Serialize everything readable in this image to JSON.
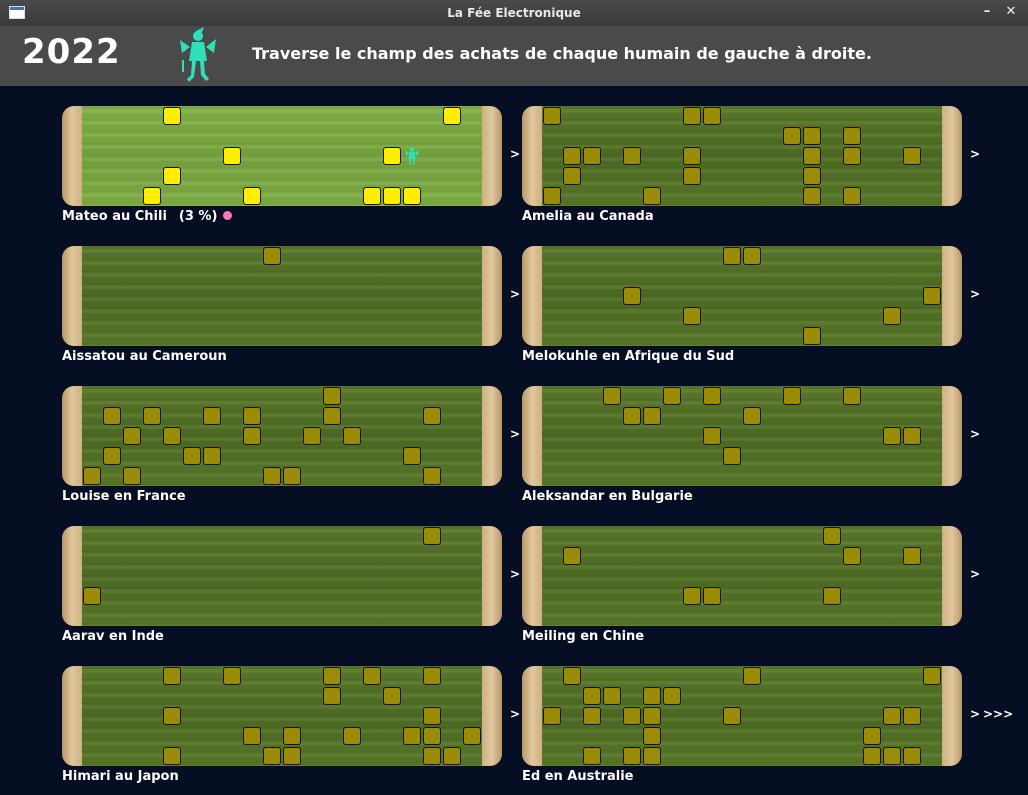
{
  "window": {
    "title": "La Fée Electronique",
    "minimize_glyph": "–",
    "close_glyph": "✕"
  },
  "header": {
    "year": "2022",
    "instruction": "Traverse le champ des achats de chaque humain de gauche à droite."
  },
  "colors": {
    "active_block": "#ffee00",
    "inactive_block": "#9a8c08",
    "fairy": "#2ee0b8",
    "progress_dot": "#f878c0"
  },
  "arrow_glyph": ">",
  "more_glyph": ">>>",
  "grid": {
    "cols": 20,
    "rows": 5
  },
  "panels": [
    {
      "label": "Mateo au Chili",
      "progress": "(3 %)",
      "active": true,
      "fairy_cell": [
        16,
        2
      ],
      "blocks": [
        [
          4,
          0
        ],
        [
          18,
          0
        ],
        [
          7,
          2
        ],
        [
          15,
          2
        ],
        [
          4,
          3
        ],
        [
          3,
          4
        ],
        [
          8,
          4
        ],
        [
          14,
          4
        ],
        [
          15,
          4
        ],
        [
          16,
          4
        ]
      ]
    },
    {
      "label": "Amelia au Canada",
      "active": false,
      "blocks": [
        [
          0,
          0
        ],
        [
          7,
          0
        ],
        [
          8,
          0
        ],
        [
          12,
          1
        ],
        [
          13,
          1
        ],
        [
          15,
          1
        ],
        [
          1,
          2
        ],
        [
          2,
          2
        ],
        [
          4,
          2
        ],
        [
          7,
          2
        ],
        [
          13,
          2
        ],
        [
          15,
          2
        ],
        [
          18,
          2
        ],
        [
          1,
          3
        ],
        [
          7,
          3
        ],
        [
          13,
          3
        ],
        [
          0,
          4
        ],
        [
          5,
          4
        ],
        [
          13,
          4
        ],
        [
          15,
          4
        ]
      ]
    },
    {
      "label": "Aissatou au Cameroun",
      "active": false,
      "blocks": [
        [
          9,
          0
        ]
      ]
    },
    {
      "label": "Melokuhle en Afrique du Sud",
      "active": false,
      "blocks": [
        [
          9,
          0
        ],
        [
          10,
          0
        ],
        [
          4,
          2
        ],
        [
          19,
          2
        ],
        [
          7,
          3
        ],
        [
          17,
          3
        ],
        [
          13,
          4
        ]
      ]
    },
    {
      "label": "Louise en France",
      "active": false,
      "blocks": [
        [
          12,
          0
        ],
        [
          1,
          1
        ],
        [
          3,
          1
        ],
        [
          6,
          1
        ],
        [
          8,
          1
        ],
        [
          12,
          1
        ],
        [
          17,
          1
        ],
        [
          2,
          2
        ],
        [
          4,
          2
        ],
        [
          8,
          2
        ],
        [
          11,
          2
        ],
        [
          13,
          2
        ],
        [
          1,
          3
        ],
        [
          5,
          3
        ],
        [
          6,
          3
        ],
        [
          16,
          3
        ],
        [
          0,
          4
        ],
        [
          2,
          4
        ],
        [
          9,
          4
        ],
        [
          10,
          4
        ],
        [
          17,
          4
        ]
      ]
    },
    {
      "label": "Aleksandar en Bulgarie",
      "active": false,
      "blocks": [
        [
          3,
          0
        ],
        [
          6,
          0
        ],
        [
          8,
          0
        ],
        [
          12,
          0
        ],
        [
          15,
          0
        ],
        [
          4,
          1
        ],
        [
          5,
          1
        ],
        [
          10,
          1
        ],
        [
          8,
          2
        ],
        [
          17,
          2
        ],
        [
          18,
          2
        ],
        [
          9,
          3
        ]
      ]
    },
    {
      "label": "Aarav en Inde",
      "active": false,
      "blocks": [
        [
          17,
          0
        ],
        [
          0,
          3
        ]
      ]
    },
    {
      "label": "Meiling en Chine",
      "active": false,
      "blocks": [
        [
          14,
          0
        ],
        [
          1,
          1
        ],
        [
          15,
          1
        ],
        [
          18,
          1
        ],
        [
          7,
          3
        ],
        [
          8,
          3
        ],
        [
          14,
          3
        ]
      ]
    },
    {
      "label": "Himari au Japon",
      "active": false,
      "blocks": [
        [
          4,
          0
        ],
        [
          7,
          0
        ],
        [
          12,
          0
        ],
        [
          14,
          0
        ],
        [
          17,
          0
        ],
        [
          12,
          1
        ],
        [
          15,
          1
        ],
        [
          4,
          2
        ],
        [
          17,
          2
        ],
        [
          8,
          3
        ],
        [
          10,
          3
        ],
        [
          13,
          3
        ],
        [
          16,
          3
        ],
        [
          17,
          3
        ],
        [
          19,
          3
        ],
        [
          4,
          4
        ],
        [
          9,
          4
        ],
        [
          10,
          4
        ],
        [
          17,
          4
        ],
        [
          18,
          4
        ]
      ]
    },
    {
      "label": "Ed en Australie",
      "active": false,
      "blocks": [
        [
          1,
          0
        ],
        [
          10,
          0
        ],
        [
          19,
          0
        ],
        [
          2,
          1
        ],
        [
          3,
          1
        ],
        [
          5,
          1
        ],
        [
          6,
          1
        ],
        [
          0,
          2
        ],
        [
          2,
          2
        ],
        [
          4,
          2
        ],
        [
          5,
          2
        ],
        [
          9,
          2
        ],
        [
          17,
          2
        ],
        [
          18,
          2
        ],
        [
          5,
          3
        ],
        [
          16,
          3
        ],
        [
          2,
          4
        ],
        [
          4,
          4
        ],
        [
          5,
          4
        ],
        [
          16,
          4
        ],
        [
          17,
          4
        ],
        [
          18,
          4
        ]
      ]
    }
  ]
}
